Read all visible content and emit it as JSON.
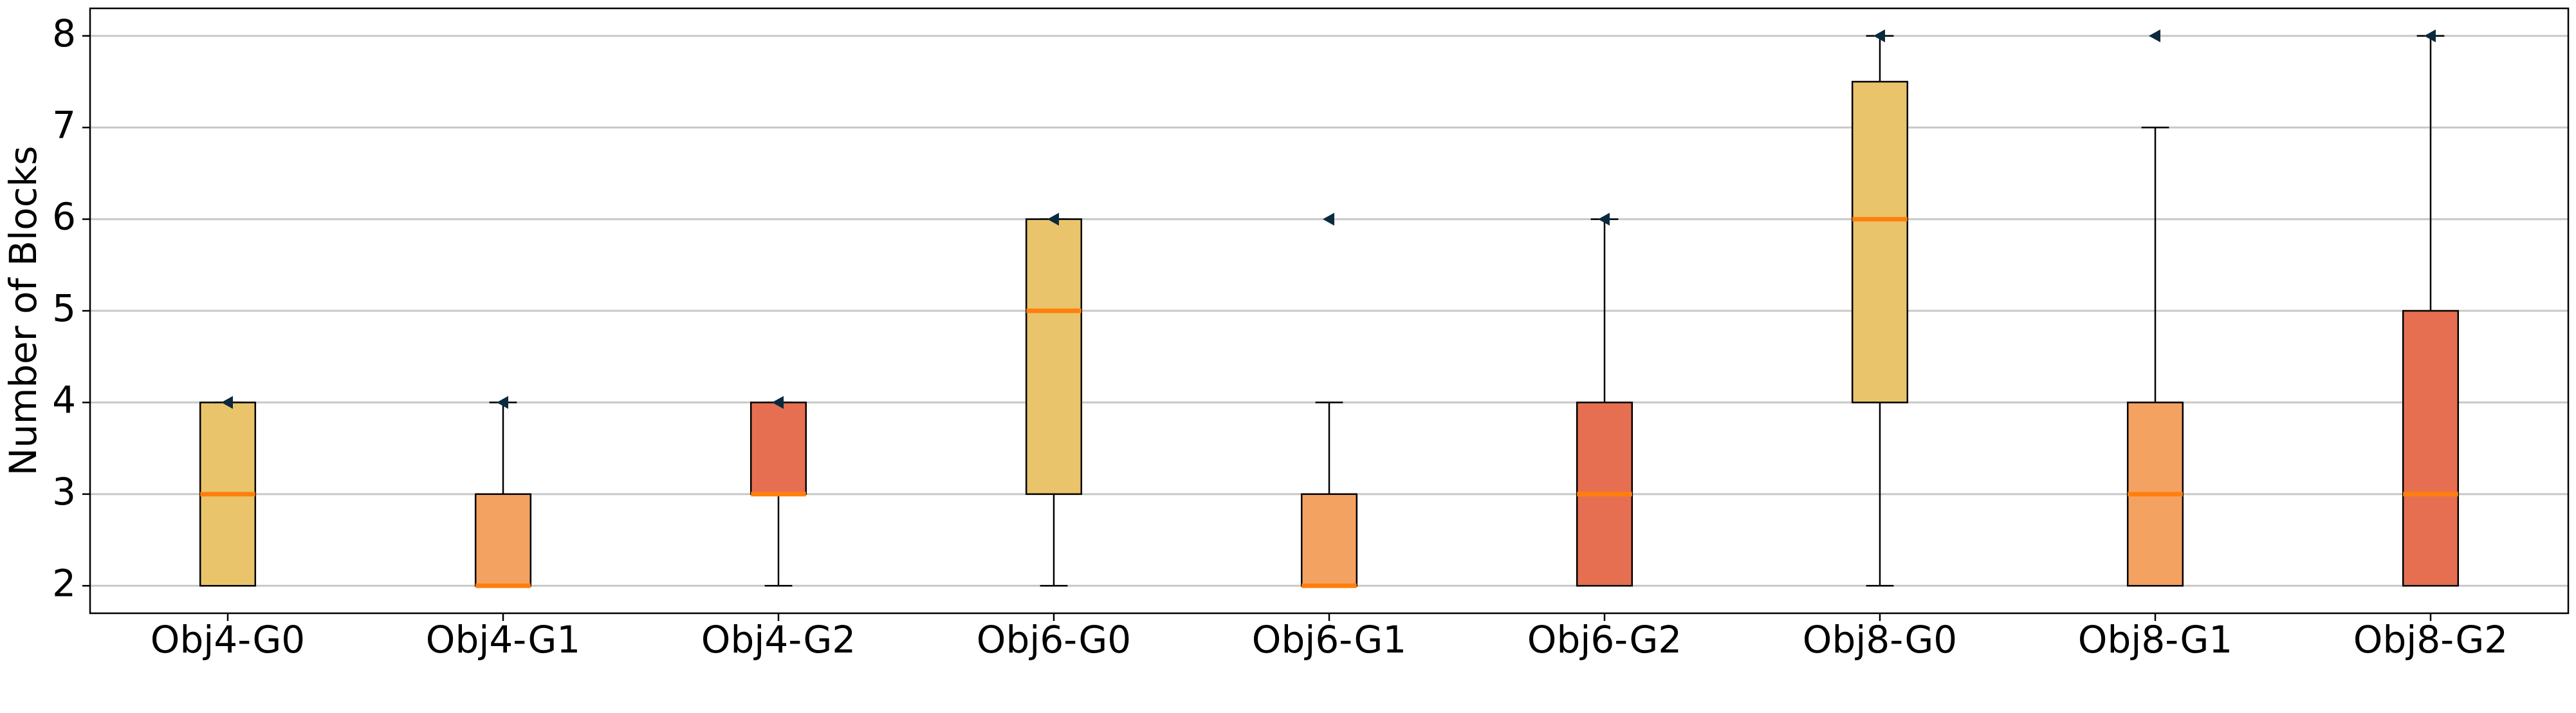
{
  "chart_data": {
    "type": "box",
    "y_label": "Number of Blocks",
    "categories": [
      "Obj4-G0",
      "Obj4-G1",
      "Obj4-G2",
      "Obj6-G0",
      "Obj6-G1",
      "Obj6-G2",
      "Obj8-G0",
      "Obj8-G1",
      "Obj8-G2"
    ],
    "colors": [
      "#e9c46a",
      "#f4a261",
      "#e76f51",
      "#e9c46a",
      "#f4a261",
      "#e76f51",
      "#e9c46a",
      "#f4a261",
      "#e76f51"
    ],
    "whisker_low": [
      2,
      2,
      2,
      2,
      2,
      2,
      2,
      2,
      2
    ],
    "q1": [
      2,
      2,
      3,
      3,
      2,
      2,
      4,
      2,
      2
    ],
    "median": [
      3,
      2,
      3,
      5,
      2,
      3,
      6,
      3,
      3
    ],
    "q3": [
      4,
      3,
      4,
      6,
      3,
      4,
      7.5,
      4,
      5
    ],
    "whisker_high": [
      4,
      4,
      4,
      6,
      4,
      6,
      8,
      7,
      8
    ],
    "markers": [
      4,
      4,
      4,
      6,
      6,
      6,
      8,
      8,
      8
    ],
    "median_color": "#ff7f0e",
    "marker_color": "#0b2a3f",
    "ylim": [
      1.7,
      8.3
    ],
    "yticks": [
      2,
      3,
      4,
      5,
      6,
      7,
      8
    ],
    "grid": true
  }
}
